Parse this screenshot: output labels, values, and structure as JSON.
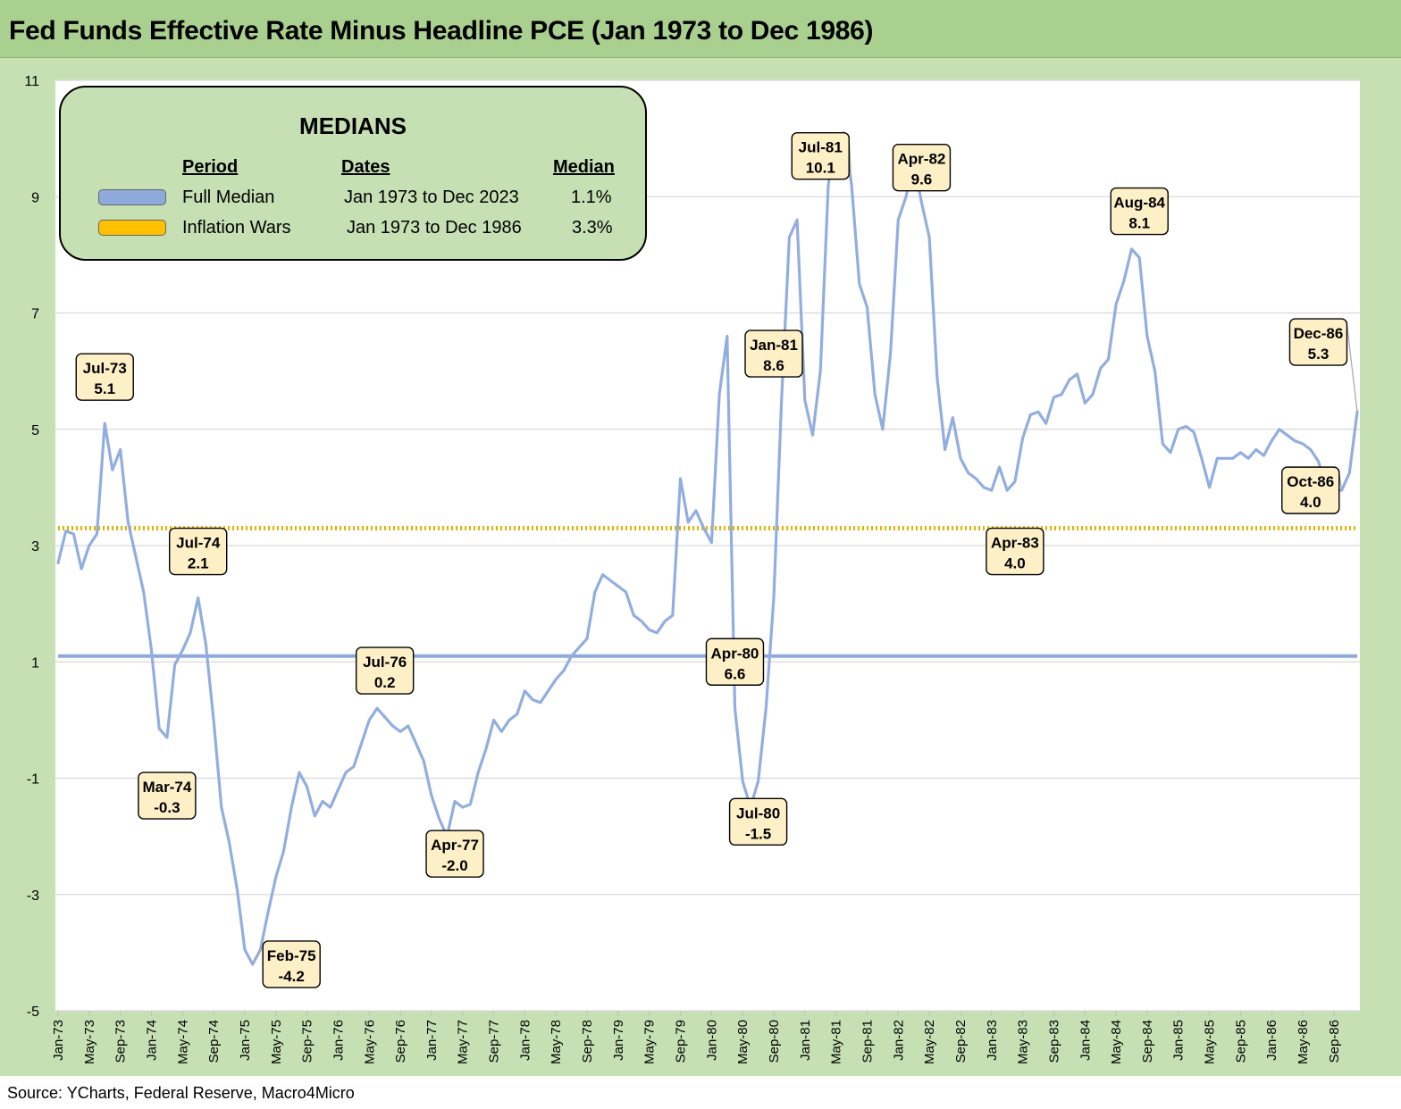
{
  "title": "Fed Funds Effective Rate Minus Headline PCE (Jan 1973 to Dec 1986)",
  "source": "Source: YCharts, Federal Reserve, Macro4Micro",
  "colors": {
    "series": "#92aee0",
    "full_median": "#8eaadb",
    "inflation_median": "#e8b000",
    "background": "#c6e0b4",
    "title_bar": "#a9d08e",
    "callout_fill": "#fdefc6"
  },
  "legend": {
    "title": "MEDIANS",
    "headers": {
      "period": "Period",
      "dates": "Dates",
      "median": "Median"
    },
    "rows": [
      {
        "period": "Full Median",
        "dates": "Jan 1973 to Dec 2023",
        "median": "1.1%",
        "color": "#8eaadb"
      },
      {
        "period": "Inflation Wars",
        "dates": "Jan 1973 to Dec 1986",
        "median": "3.3%",
        "color": "#ffc000"
      }
    ]
  },
  "chart_data": {
    "type": "line",
    "ylim": [
      -5,
      11
    ],
    "yticks": [
      -5,
      -3,
      -1,
      1,
      3,
      5,
      7,
      9,
      11
    ],
    "grid": true,
    "x_tick_labels": [
      "Jan-73",
      "May-73",
      "Sep-73",
      "Jan-74",
      "May-74",
      "Sep-74",
      "Jan-75",
      "May-75",
      "Sep-75",
      "Jan-76",
      "May-76",
      "Sep-76",
      "Jan-77",
      "May-77",
      "Sep-77",
      "Jan-78",
      "May-78",
      "Sep-78",
      "Jan-79",
      "May-79",
      "Sep-79",
      "Jan-80",
      "May-80",
      "Sep-80",
      "Jan-81",
      "May-81",
      "Sep-81",
      "Jan-82",
      "May-82",
      "Sep-82",
      "Jan-83",
      "May-83",
      "Sep-83",
      "Jan-84",
      "May-84",
      "Sep-84",
      "Jan-85",
      "May-85",
      "Sep-85",
      "Jan-86",
      "May-86",
      "Sep-86"
    ],
    "x_start": "Jan-73",
    "x_end": "Dec-86",
    "series_values": [
      2.7,
      3.25,
      3.2,
      2.6,
      3.0,
      3.2,
      5.1,
      4.3,
      4.65,
      3.4,
      2.8,
      2.2,
      1.2,
      -0.15,
      -0.3,
      0.95,
      1.2,
      1.5,
      2.1,
      1.3,
      0.0,
      -1.5,
      -2.1,
      -2.9,
      -3.95,
      -4.2,
      -3.95,
      -3.3,
      -2.7,
      -2.25,
      -1.5,
      -0.9,
      -1.15,
      -1.65,
      -1.4,
      -1.5,
      -1.2,
      -0.9,
      -0.8,
      -0.4,
      0.0,
      0.2,
      0.05,
      -0.1,
      -0.2,
      -0.1,
      -0.4,
      -0.7,
      -1.3,
      -1.7,
      -2.0,
      -1.4,
      -1.5,
      -1.45,
      -0.9,
      -0.5,
      0.0,
      -0.2,
      0.0,
      0.1,
      0.5,
      0.35,
      0.3,
      0.5,
      0.7,
      0.85,
      1.1,
      1.25,
      1.4,
      2.2,
      2.5,
      2.4,
      2.3,
      2.2,
      1.8,
      1.7,
      1.55,
      1.5,
      1.7,
      1.8,
      4.15,
      3.4,
      3.6,
      3.3,
      3.05,
      5.6,
      6.6,
      0.2,
      -1.05,
      -1.5,
      -1.05,
      0.2,
      2.1,
      5.5,
      8.3,
      8.6,
      5.5,
      4.9,
      6.0,
      9.2,
      10.0,
      10.1,
      9.2,
      7.5,
      7.1,
      5.6,
      5.0,
      6.3,
      8.6,
      9.0,
      9.6,
      8.9,
      8.3,
      5.9,
      4.65,
      5.2,
      4.5,
      4.25,
      4.15,
      4.0,
      3.95,
      4.35,
      3.95,
      4.1,
      4.85,
      5.25,
      5.3,
      5.1,
      5.55,
      5.6,
      5.85,
      5.95,
      5.45,
      5.6,
      6.05,
      6.2,
      7.15,
      7.55,
      8.1,
      7.95,
      6.6,
      6.0,
      4.75,
      4.6,
      5.0,
      5.05,
      4.95,
      4.5,
      4.0,
      4.5,
      4.5,
      4.5,
      4.6,
      4.5,
      4.65,
      4.55,
      4.8,
      5.0,
      4.9,
      4.8,
      4.75,
      4.65,
      4.45,
      4.0,
      3.95,
      3.95,
      4.25,
      5.3
    ],
    "medians": [
      {
        "name": "Full Median",
        "value": 1.1
      },
      {
        "name": "Inflation Wars",
        "value": 3.3
      }
    ],
    "annotations": [
      {
        "month": "Jul-73",
        "value": "5.1"
      },
      {
        "month": "Mar-74",
        "value": "-0.3"
      },
      {
        "month": "Jul-74",
        "value": "2.1"
      },
      {
        "month": "Feb-75",
        "value": "-4.2"
      },
      {
        "month": "Jul-76",
        "value": "0.2"
      },
      {
        "month": "Apr-77",
        "value": "-2.0"
      },
      {
        "month": "Apr-80",
        "value": "6.6"
      },
      {
        "month": "Jul-80",
        "value": "-1.5"
      },
      {
        "month": "Jan-81",
        "value": "8.6"
      },
      {
        "month": "Jul-81",
        "value": "10.1"
      },
      {
        "month": "Apr-82",
        "value": "9.6"
      },
      {
        "month": "Apr-83",
        "value": "4.0"
      },
      {
        "month": "Aug-84",
        "value": "8.1"
      },
      {
        "month": "Oct-86",
        "value": "4.0"
      },
      {
        "month": "Dec-86",
        "value": "5.3"
      }
    ]
  }
}
